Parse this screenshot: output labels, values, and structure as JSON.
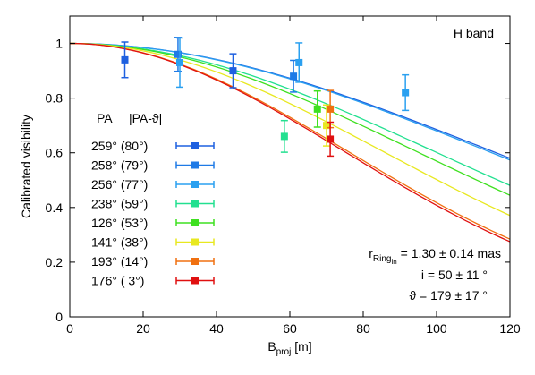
{
  "chart_data": {
    "type": "scatter",
    "title": "",
    "band_label": "H band",
    "xlabel": {
      "main": "B",
      "sub": "proj",
      "unit": " [m]"
    },
    "ylabel": "Calibrated visibility",
    "xlim": [
      0,
      120
    ],
    "ylim": [
      0,
      1.1
    ],
    "xticks": [
      0,
      20,
      40,
      60,
      80,
      100,
      120
    ],
    "yticks": [
      0,
      0.2,
      0.4,
      0.6,
      0.8,
      1
    ],
    "ytick_labels": [
      "0",
      "0.2",
      "0.4",
      "0.6",
      "0.8",
      "1"
    ],
    "legend_header": {
      "col1": "PA",
      "col2": "|PA-ϑ|"
    },
    "legend_position": "center-left",
    "series": [
      {
        "name": "259°  (80°)",
        "color": "#1e60e0",
        "points": [
          {
            "x": 15,
            "y": 0.94,
            "err": 0.065
          },
          {
            "x": 44.5,
            "y": 0.9,
            "err": 0.062
          }
        ]
      },
      {
        "name": "258°  (79°)",
        "color": "#1f7ae6",
        "points": [
          {
            "x": 29.5,
            "y": 0.96,
            "err": 0.062
          },
          {
            "x": 61,
            "y": 0.88,
            "err": 0.058
          }
        ]
      },
      {
        "name": "256°  (77°)",
        "color": "#2aa0f0",
        "points": [
          {
            "x": 30,
            "y": 0.93,
            "err": 0.09
          },
          {
            "x": 62.5,
            "y": 0.93,
            "err": 0.072
          },
          {
            "x": 91.5,
            "y": 0.82,
            "err": 0.065
          }
        ]
      },
      {
        "name": "238°  (59°)",
        "color": "#22e090",
        "points": [
          {
            "x": 58.5,
            "y": 0.66,
            "err": 0.058
          }
        ]
      },
      {
        "name": "126°  (53°)",
        "color": "#3fe020",
        "points": [
          {
            "x": 67.5,
            "y": 0.76,
            "err": 0.066
          }
        ]
      },
      {
        "name": "141°  (38°)",
        "color": "#e8e820",
        "points": [
          {
            "x": 70,
            "y": 0.7,
            "err": 0.075
          }
        ]
      },
      {
        "name": "193°  (14°)",
        "color": "#f07010",
        "points": [
          {
            "x": 71,
            "y": 0.76,
            "err": 0.068
          }
        ]
      },
      {
        "name": "176°  ( 3°)",
        "color": "#e01010",
        "points": [
          {
            "x": 71,
            "y": 0.65,
            "err": 0.062
          }
        ]
      }
    ],
    "model_curves": [
      {
        "color": "#1e60e0",
        "scale": 1.0
      },
      {
        "color": "#2aa0f0",
        "scale": 1.01
      },
      {
        "color": "#22e090",
        "scale": 1.16
      },
      {
        "color": "#3fe020",
        "scale": 1.22
      },
      {
        "color": "#e8e820",
        "scale": 1.35
      },
      {
        "color": "#f07010",
        "scale": 1.52
      },
      {
        "color": "#e01010",
        "scale": 1.54
      }
    ],
    "annotations": {
      "r_main": "r",
      "r_sub": "Ring",
      "r_subsub": "in",
      "r_value": " = 1.30 ± 0.14 mas",
      "i_line": "i  =   50 ± 11 °",
      "theta_line": "ϑ  = 179 ± 17 °"
    },
    "grid": false
  }
}
